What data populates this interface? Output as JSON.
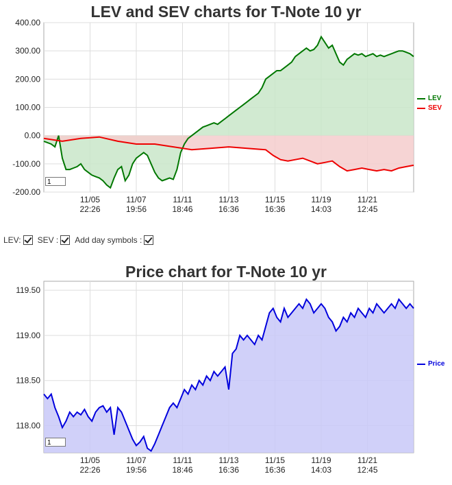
{
  "chart_data": [
    {
      "type": "line",
      "title": "LEV and SEV charts for T-Note 10 yr",
      "ylim": [
        -200,
        400
      ],
      "yticks": [
        "400.00",
        "300.00",
        "200.00",
        "100.00",
        "0.00",
        "-100.00",
        "-200.00"
      ],
      "xticks": [
        {
          "date": "11/05",
          "time": "22:26"
        },
        {
          "date": "11/07",
          "time": "19:56"
        },
        {
          "date": "11/11",
          "time": "18:46"
        },
        {
          "date": "11/13",
          "time": "16:36"
        },
        {
          "date": "11/15",
          "time": "16:36"
        },
        {
          "date": "11/19",
          "time": "14:03"
        },
        {
          "date": "11/21",
          "time": "12:45"
        }
      ],
      "xlim": [
        0,
        100
      ],
      "series": [
        {
          "name": "LEV",
          "color": "#007700",
          "x": [
            0,
            2,
            3,
            4,
            5,
            6,
            7,
            8,
            9,
            10,
            11,
            12,
            13,
            14,
            15,
            16,
            17,
            18,
            19,
            20,
            21,
            22,
            23,
            24,
            25,
            26,
            27,
            28,
            29,
            30,
            31,
            32,
            33,
            34,
            35,
            36,
            37,
            38,
            39,
            40,
            41,
            42,
            43,
            44,
            45,
            46,
            47,
            48,
            49,
            50,
            51,
            52,
            53,
            54,
            55,
            56,
            57,
            58,
            59,
            60,
            61,
            62,
            63,
            64,
            65,
            66,
            67,
            68,
            69,
            70,
            71,
            72,
            73,
            74,
            75,
            76,
            77,
            78,
            79,
            80,
            81,
            82,
            83,
            84,
            85,
            86,
            87,
            88,
            89,
            90,
            91,
            92,
            93,
            94,
            95,
            96,
            97,
            98,
            99,
            100
          ],
          "values": [
            -20,
            -30,
            -40,
            0,
            -80,
            -120,
            -120,
            -115,
            -110,
            -100,
            -120,
            -130,
            -140,
            -145,
            -150,
            -160,
            -175,
            -185,
            -150,
            -120,
            -110,
            -160,
            -140,
            -100,
            -80,
            -70,
            -60,
            -70,
            -100,
            -130,
            -150,
            -160,
            -155,
            -150,
            -155,
            -120,
            -60,
            -30,
            -10,
            0,
            10,
            20,
            30,
            35,
            40,
            45,
            40,
            50,
            60,
            70,
            80,
            90,
            100,
            110,
            120,
            130,
            140,
            150,
            170,
            200,
            210,
            220,
            230,
            230,
            240,
            250,
            260,
            280,
            290,
            300,
            310,
            300,
            305,
            320,
            350,
            330,
            310,
            320,
            290,
            260,
            250,
            270,
            280,
            290,
            285,
            290,
            280,
            285,
            290,
            280,
            285,
            280,
            285,
            290,
            295,
            300,
            300,
            295,
            290,
            280
          ],
          "fill": "#c9e6c9"
        },
        {
          "name": "SEV",
          "color": "#ee0000",
          "x": [
            0,
            5,
            10,
            15,
            20,
            25,
            30,
            35,
            40,
            45,
            50,
            55,
            60,
            62,
            64,
            66,
            68,
            70,
            72,
            74,
            76,
            78,
            80,
            82,
            84,
            86,
            88,
            90,
            92,
            94,
            96,
            98,
            100
          ],
          "values": [
            -10,
            -20,
            -10,
            -5,
            -20,
            -30,
            -30,
            -40,
            -50,
            -45,
            -40,
            -45,
            -50,
            -70,
            -85,
            -90,
            -85,
            -80,
            -90,
            -100,
            -95,
            -90,
            -110,
            -125,
            -120,
            -115,
            -120,
            -125,
            -120,
            -125,
            -115,
            -110,
            -105
          ],
          "fill": "#f4cccc"
        }
      ],
      "legend": "right"
    },
    {
      "type": "line",
      "title": "Price chart for T-Note 10 yr",
      "ylim": [
        117.7,
        119.6
      ],
      "yticks": [
        "119.50",
        "119.00",
        "118.50",
        "118.00"
      ],
      "xticks": [
        {
          "date": "11/05",
          "time": "22:26"
        },
        {
          "date": "11/07",
          "time": "19:56"
        },
        {
          "date": "11/11",
          "time": "18:46"
        },
        {
          "date": "11/13",
          "time": "16:36"
        },
        {
          "date": "11/15",
          "time": "16:36"
        },
        {
          "date": "11/19",
          "time": "14:03"
        },
        {
          "date": "11/21",
          "time": "12:45"
        }
      ],
      "xlim": [
        0,
        100
      ],
      "series": [
        {
          "name": "Price",
          "color": "#0000dd",
          "x": [
            0,
            1,
            2,
            3,
            4,
            5,
            6,
            7,
            8,
            9,
            10,
            11,
            12,
            13,
            14,
            15,
            16,
            17,
            18,
            19,
            20,
            21,
            22,
            23,
            24,
            25,
            26,
            27,
            28,
            29,
            30,
            31,
            32,
            33,
            34,
            35,
            36,
            37,
            38,
            39,
            40,
            41,
            42,
            43,
            44,
            45,
            46,
            47,
            48,
            49,
            50,
            51,
            52,
            53,
            54,
            55,
            56,
            57,
            58,
            59,
            60,
            61,
            62,
            63,
            64,
            65,
            66,
            67,
            68,
            69,
            70,
            71,
            72,
            73,
            74,
            75,
            76,
            77,
            78,
            79,
            80,
            81,
            82,
            83,
            84,
            85,
            86,
            87,
            88,
            89,
            90,
            91,
            92,
            93,
            94,
            95,
            96,
            97,
            98,
            99,
            100
          ],
          "values": [
            118.35,
            118.3,
            118.35,
            118.2,
            118.1,
            117.98,
            118.05,
            118.15,
            118.1,
            118.15,
            118.12,
            118.18,
            118.1,
            118.05,
            118.15,
            118.2,
            118.22,
            118.15,
            118.2,
            117.9,
            118.2,
            118.15,
            118.05,
            117.95,
            117.85,
            117.78,
            117.82,
            117.88,
            117.75,
            117.72,
            117.8,
            117.9,
            118.0,
            118.1,
            118.2,
            118.25,
            118.2,
            118.3,
            118.4,
            118.35,
            118.45,
            118.4,
            118.5,
            118.45,
            118.55,
            118.5,
            118.6,
            118.55,
            118.6,
            118.65,
            118.4,
            118.8,
            118.85,
            119.0,
            118.95,
            119.0,
            118.95,
            118.9,
            119.0,
            118.95,
            119.1,
            119.25,
            119.3,
            119.2,
            119.15,
            119.3,
            119.2,
            119.25,
            119.3,
            119.35,
            119.3,
            119.4,
            119.35,
            119.25,
            119.3,
            119.35,
            119.3,
            119.2,
            119.15,
            119.05,
            119.1,
            119.2,
            119.15,
            119.25,
            119.2,
            119.3,
            119.25,
            119.2,
            119.3,
            119.25,
            119.35,
            119.3,
            119.25,
            119.3,
            119.35,
            119.3,
            119.4,
            119.35,
            119.3,
            119.35,
            119.3
          ],
          "fill": "#c8c8f8"
        }
      ],
      "legend": "right"
    }
  ],
  "controls": {
    "lev_label": "LEV:",
    "sev_label": "SEV :",
    "day_label": "Add day symbols :"
  },
  "boxes": {
    "top": "1",
    "bottom": "1"
  },
  "legend": {
    "lev": "LEV",
    "sev": "SEV",
    "price": "Price"
  }
}
